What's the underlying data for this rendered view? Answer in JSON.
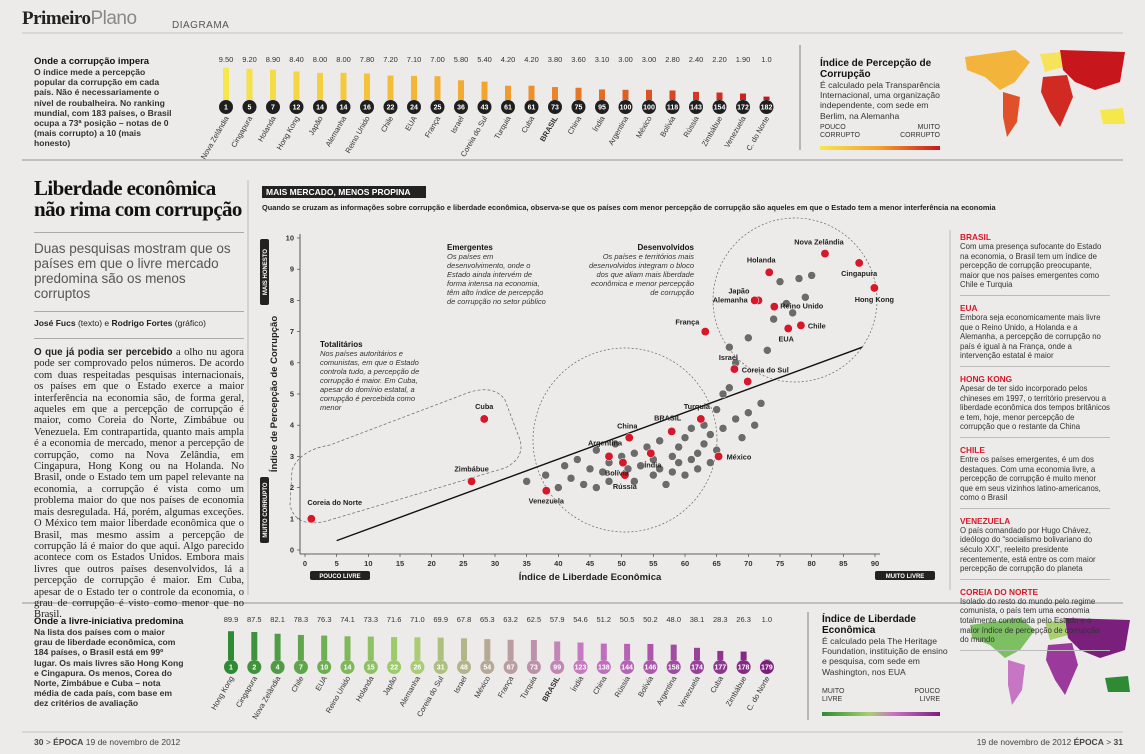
{
  "header": {
    "brand_bold": "Primeiro",
    "brand_light": "Plano",
    "section": "DIAGRAMA"
  },
  "top_intro": {
    "title": "Onde a corrupção impera",
    "text": "O índice mede a percepção popular da corrupção em cada país. Não é necessariamente o nível de roubalheira. No ranking mundial, com 183 países, o Brasil ocupa a 73ª posição – notas de 0 (mais corrupto) a 10 (mais honesto)"
  },
  "top_map": {
    "title": "Índice de Percepção de Corrupção",
    "text": "É calculado pela Transparência Internacional, uma organização independente, com sede em Berlim, na Alemanha",
    "legend_low": "POUCO CORRUPTO",
    "legend_high": "MUITO CORRUPTO"
  },
  "article": {
    "title": "Liberdade econômica não rima com corrupção",
    "dek": "Duas pesquisas mostram que os países em que o livre mercado predomina são os menos corruptos",
    "byline_author": "José Fucs",
    "byline_author_role": " (texto) e ",
    "byline_artist": "Rodrigo Fortes",
    "byline_artist_role": " (gráfico)",
    "body_lead": "O que já podia ser percebido",
    "body": " a olho nu agora pode ser comprovado pelos números. De acordo com duas respeitadas pesquisas internacionais, os países em que o Estado exerce a maior interferência na economia são, de forma geral, aqueles em que a percepção de corrupção é maior, como Coreia do Norte, Zimbábue ou Venezuela. Em contrapartida, quanto mais ampla é a economia de mercado, menor a percepção de corrupção, como na Nova Zelândia, em Cingapura, Hong Kong ou na Holanda. No Brasil, onde o Estado tem um papel relevante na economia, a corrupção é vista como um problema maior do que nos países de economia mais desregulada. Há, porém, algumas exceções. O México tem maior liberdade econômica que o Brasil, mas mesmo assim a percepção de corrupção lá é maior do que aqui. Algo parecido acontece com os Estados Unidos. Embora mais livres que outros países desenvolvidos, lá a percepção de corrupção é maior. Em Cuba, apesar de o Estado ter o controle da economia, o grau de corrupção é visto como menor que no Brasil."
  },
  "sidebar": {
    "items": [
      {
        "title": "BRASIL",
        "text": "Com uma presença sufocante do Estado na economia, o Brasil tem um índice de percepção de corrupção preocupante, maior que nos países emergentes como Chile e Turquia"
      },
      {
        "title": "EUA",
        "text": "Embora seja economicamente mais livre que o Reino Unido, a Holanda e a Alemanha, a percepção de corrupção no país é igual à na França, onde a intervenção estatal é maior"
      },
      {
        "title": "HONG KONG",
        "text": "Apesar de ter sido incorporado pelos chineses em 1997, o território preservou a liberdade econômica dos tempos britânicos e tem, hoje, menor percepção de corrupção que o restante da China"
      },
      {
        "title": "CHILE",
        "text": "Entre os países emergentes, é um dos destaques. Com uma economia livre, a percepção de corrupção é muito menor que em seus vizinhos latino-americanos, como o Brasil"
      },
      {
        "title": "VENEZUELA",
        "text": "O país comandado por Hugo Chávez, ideólogo do “socialismo bolivariano do século XXI”, reeleito presidente recentemente, está entre os com maior percepção de corrupção do planeta"
      },
      {
        "title": "COREIA DO NORTE",
        "text": "Isolado do resto do mundo pelo regime comunista, o país tem uma economia totalmente controlada pelo Estado e o maior índice de percepção de corrupção do mundo"
      }
    ]
  },
  "bottom_intro": {
    "title": "Onde a livre-iniciativa predomina",
    "text": "Na lista dos países com o maior grau de liberdade econômica, com 184 países, o Brasil está em 99º lugar. Os mais livres são Hong Kong e Cingapura. Os menos, Corea do Norte, Zimbábue e Cuba – nota média de cada país, com base em dez critérios de avaliação"
  },
  "bottom_map": {
    "title": "Índice de Liberdade Econômica",
    "text": "É calculado pela The Heritage Foundation, instituição de ensino e pesquisa, com sede em Washington, nos EUA",
    "legend_low": "MUITO LIVRE",
    "legend_high": "POUCO LIVRE"
  },
  "footer": {
    "left_page": "30",
    "left_brand": "ÉPOCA",
    "left_date": "19 de novembro de 2012",
    "right_date": "19 de novembro de 2012",
    "right_brand": "ÉPOCA",
    "right_page": "31"
  },
  "chart_data": [
    {
      "type": "bar",
      "categories": [
        "Nova Zelândia",
        "Cingapura",
        "Holanda",
        "Hong Kong",
        "Japão",
        "Alemanha",
        "Reino Unido",
        "Chile",
        "EUA",
        "França",
        "Israel",
        "Coreia do Sul",
        "Turquia",
        "Cuba",
        "BRASIL",
        "China",
        "Índia",
        "Argentina",
        "México",
        "Bolívia",
        "Rússia",
        "Zimbábue",
        "Venezuela",
        "C. do Norte"
      ],
      "values": [
        9.5,
        9.2,
        8.9,
        8.4,
        8.0,
        8.0,
        7.8,
        7.2,
        7.1,
        7.0,
        5.8,
        5.4,
        4.2,
        4.2,
        3.8,
        3.6,
        3.1,
        3.0,
        3.0,
        2.8,
        2.4,
        2.2,
        1.9,
        1.0
      ],
      "value_labels": [
        "9.50",
        "9.20",
        "8.90",
        "8.40",
        "8.00",
        "8.00",
        "7.80",
        "7.20",
        "7.10",
        "7.00",
        "5.80",
        "5.40",
        "4.20",
        "4.20",
        "3.80",
        "3.60",
        "3.10",
        "3.00",
        "3.00",
        "2.80",
        "2.40",
        "2.20",
        "1.90",
        "1.0"
      ],
      "ranks": [
        1,
        5,
        7,
        12,
        14,
        14,
        16,
        22,
        24,
        25,
        36,
        43,
        61,
        61,
        73,
        75,
        95,
        100,
        100,
        118,
        143,
        154,
        172,
        182
      ],
      "ylim": [
        0,
        10
      ],
      "color_scale": [
        "#f6e84a",
        "#f3a12c",
        "#c8161d"
      ],
      "badge_color": "#1f1f1f"
    },
    {
      "type": "scatter",
      "title": "MAIS MERCADO, MENOS PROPINA",
      "subtitle": "Quando se cruzam as informações sobre corrupção e liberdade econômica, observa-se que os países com menor percepção de corrupção são aqueles em que o Estado tem a menor interferência na economia",
      "xlabel": "Índice de Liberdade Econômica",
      "ylabel": "Índice de Percepção de Corrupção",
      "x_end_labels": [
        "POUCO LIVRE",
        "MUITO LIVRE"
      ],
      "y_end_labels": [
        "MUITO CORRUPTO",
        "MAIS HONESTO"
      ],
      "xlim": [
        0,
        90
      ],
      "xticks": [
        0,
        5,
        10,
        15,
        20,
        25,
        30,
        35,
        40,
        45,
        50,
        55,
        60,
        65,
        70,
        75,
        80,
        85,
        90
      ],
      "ylim": [
        0,
        10
      ],
      "yticks": [
        0,
        1,
        2,
        3,
        4,
        5,
        6,
        7,
        8,
        9,
        10
      ],
      "series": [
        {
          "color": "#6b6b6b",
          "x": [
            35,
            38,
            40,
            41,
            42,
            43,
            44,
            45,
            46,
            46,
            47,
            48,
            48,
            49,
            50,
            51,
            52,
            52,
            53,
            54,
            55,
            55,
            56,
            56,
            57,
            58,
            58,
            59,
            59,
            60,
            60,
            61,
            61,
            62,
            62,
            63,
            63,
            64,
            64,
            65,
            65,
            66,
            67,
            68,
            68,
            69,
            70,
            70,
            71,
            72,
            73,
            74,
            75,
            76,
            77,
            78,
            79,
            80,
            66,
            67
          ],
          "values": [
            2.2,
            2.4,
            2.0,
            2.7,
            2.3,
            2.9,
            2.1,
            2.6,
            3.2,
            2.0,
            2.5,
            2.8,
            2.2,
            3.4,
            3.0,
            2.6,
            3.1,
            2.2,
            2.7,
            3.3,
            2.4,
            2.9,
            2.6,
            3.5,
            2.1,
            3.0,
            2.5,
            3.3,
            2.8,
            2.4,
            3.6,
            2.9,
            3.9,
            3.1,
            2.6,
            3.4,
            4.0,
            2.8,
            3.7,
            4.5,
            3.2,
            3.9,
            6.5,
            4.2,
            6.0,
            3.6,
            4.4,
            6.8,
            4.0,
            4.7,
            6.4,
            7.4,
            8.6,
            7.9,
            7.6,
            8.7,
            8.1,
            8.8,
            5.0,
            5.2
          ]
        },
        {
          "color": "#d7182a",
          "labels": [
            "Hong Kong",
            "Cingapura",
            "Nova Zelândia",
            "Chile",
            "EUA",
            "Reino Unido",
            "Holanda",
            "Japão",
            "Alemanha",
            "Coreia do Sul",
            "Israel",
            "México",
            "França",
            "Turquia",
            "BRASIL",
            "Índia",
            "China",
            "Rússia",
            "Bolívia",
            "Argentina",
            "Venezuela",
            "Cuba",
            "Zimbábue",
            "Coreia do Norte"
          ],
          "x": [
            89.9,
            87.5,
            82.1,
            78.3,
            76.3,
            74.1,
            73.3,
            71.6,
            71.0,
            69.9,
            67.8,
            65.3,
            63.2,
            62.5,
            57.9,
            54.6,
            51.2,
            50.5,
            50.2,
            48.0,
            38.1,
            28.3,
            26.3,
            1.0
          ],
          "values": [
            8.4,
            9.2,
            9.5,
            7.2,
            7.1,
            7.8,
            8.9,
            8.0,
            8.0,
            5.4,
            5.8,
            3.0,
            7.0,
            4.2,
            3.8,
            3.1,
            3.6,
            2.4,
            2.8,
            3.0,
            1.9,
            4.2,
            2.2,
            1.0
          ]
        }
      ],
      "trendline": {
        "x": [
          5,
          88
        ],
        "y": [
          0.3,
          6.5
        ]
      },
      "annotations": [
        {
          "title": "Emergentes",
          "text": "Os países em desenvolvimento, onde o Estado ainda intervém de forma intensa na economia, têm alto índice de percepção de corrupção no setor público"
        },
        {
          "title": "Desenvolvidos",
          "text": "Os países e territórios mais desenvolvidos integram o bloco dos que aliam mais liberdade econômica e menor percepção de corrupção"
        },
        {
          "title": "Totalitários",
          "text": "Nos países autoritários e comunistas, em que o Estado controla tudo, a percepção de corrupção é maior. Em Cuba, apesar do domínio estatal, a corrupção é percebida como menor"
        }
      ]
    },
    {
      "type": "bar",
      "categories": [
        "Hong Kong",
        "Cingapura",
        "Nova Zelândia",
        "Chile",
        "EUA",
        "Reino Unido",
        "Holanda",
        "Japão",
        "Alemanha",
        "Coreia do Sul",
        "Israel",
        "México",
        "França",
        "Turquia",
        "BRASIL",
        "Índia",
        "China",
        "Rússia",
        "Bolívia",
        "Argentina",
        "Venezuela",
        "Cuba",
        "Zimbábue",
        "C. do Norte"
      ],
      "values": [
        89.9,
        87.5,
        82.1,
        78.3,
        76.3,
        74.1,
        73.3,
        71.6,
        71.0,
        69.9,
        67.8,
        65.3,
        63.2,
        62.5,
        57.9,
        54.6,
        51.2,
        50.5,
        50.2,
        48.0,
        38.1,
        28.3,
        26.3,
        1.0
      ],
      "value_labels": [
        "89.9",
        "87.5",
        "82.1",
        "78.3",
        "76.3",
        "74.1",
        "73.3",
        "71.6",
        "71.0",
        "69.9",
        "67.8",
        "65.3",
        "63.2",
        "62.5",
        "57.9",
        "54.6",
        "51.2",
        "50.5",
        "50.2",
        "48.0",
        "38.1",
        "28.3",
        "26.3",
        "1.0"
      ],
      "ranks": [
        1,
        2,
        4,
        7,
        10,
        14,
        15,
        22,
        26,
        31,
        48,
        54,
        67,
        73,
        99,
        123,
        138,
        144,
        146,
        158,
        174,
        177,
        178,
        179
      ],
      "ylim": [
        0,
        100
      ],
      "color_scale": [
        "#2f8a34",
        "#a8d070",
        "#c676c3",
        "#7a1f7c"
      ]
    }
  ]
}
